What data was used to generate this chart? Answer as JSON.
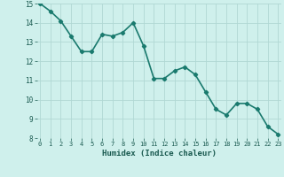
{
  "x": [
    0,
    1,
    2,
    3,
    4,
    5,
    6,
    7,
    8,
    9,
    10,
    11,
    12,
    13,
    14,
    15,
    16,
    17,
    18,
    19,
    20,
    21,
    22,
    23
  ],
  "y": [
    15.0,
    14.6,
    14.1,
    13.3,
    12.5,
    12.5,
    13.4,
    13.3,
    13.5,
    14.0,
    12.8,
    11.1,
    11.1,
    11.5,
    11.7,
    11.3,
    10.4,
    9.5,
    9.2,
    9.8,
    9.8,
    9.5,
    8.6,
    8.2
  ],
  "line_color": "#1a7a6e",
  "marker": "D",
  "markersize": 2.2,
  "bg_color": "#cff0ec",
  "grid_color": "#b0d8d4",
  "xlabel": "Humidex (Indice chaleur)",
  "xlabel_color": "#1a5a50",
  "tick_color": "#1a5a50",
  "ylim": [
    8,
    15
  ],
  "xlim_min": -0.3,
  "xlim_max": 23.3,
  "yticks": [
    8,
    9,
    10,
    11,
    12,
    13,
    14,
    15
  ],
  "xticks": [
    0,
    1,
    2,
    3,
    4,
    5,
    6,
    7,
    8,
    9,
    10,
    11,
    12,
    13,
    14,
    15,
    16,
    17,
    18,
    19,
    20,
    21,
    22,
    23
  ],
  "linewidth": 1.2
}
